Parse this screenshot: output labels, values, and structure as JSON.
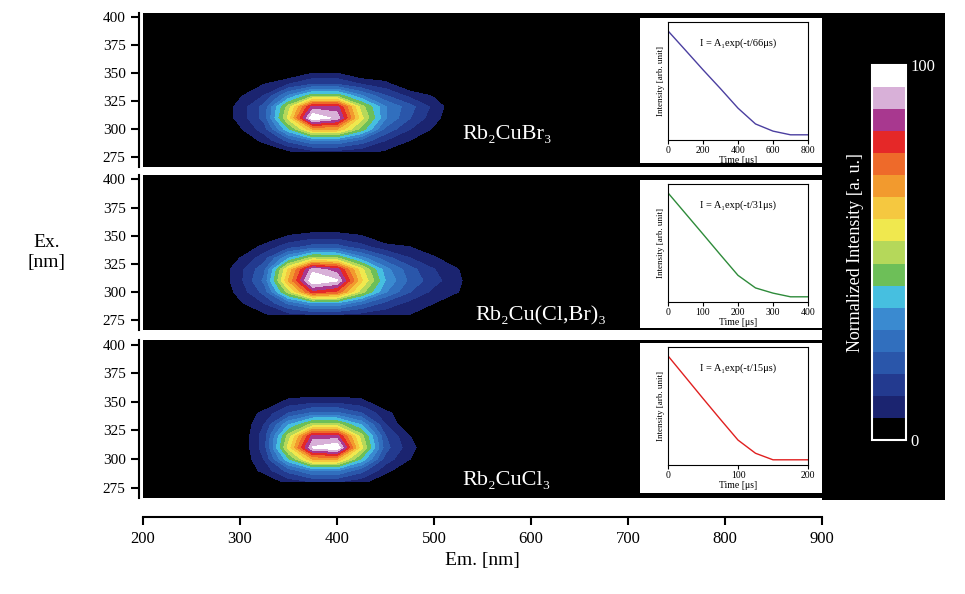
{
  "chart_data": {
    "type": "heatmap",
    "xlabel": "Em. [nm]",
    "ylabel": "Ex.\n[nm]",
    "xlim": [
      200,
      900
    ],
    "xticks": [
      200,
      300,
      400,
      500,
      600,
      700,
      800,
      900
    ],
    "ylim": [
      266,
      404
    ],
    "yticks": [
      275,
      300,
      325,
      350,
      375,
      400
    ],
    "colorbar": {
      "label": "Normalized Intensity [a. u.]",
      "range": [
        0,
        100
      ],
      "ticks": [
        0,
        100
      ]
    },
    "x": [
      275,
      300,
      325,
      350,
      375,
      400,
      425,
      450,
      475,
      500,
      525,
      550
    ],
    "y": [
      280,
      290,
      300,
      310,
      320,
      330,
      340,
      350,
      360
    ],
    "panels": [
      {
        "name": "Rb₂CuBr₃",
        "tick_labels": "y",
        "cells": [
          [
            0,
            0,
            0,
            5,
            10,
            10,
            8,
            5,
            0,
            0,
            0,
            0
          ],
          [
            0,
            0,
            8,
            20,
            30,
            30,
            22,
            12,
            6,
            0,
            0,
            0
          ],
          [
            0,
            5,
            15,
            40,
            65,
            65,
            45,
            22,
            12,
            5,
            0,
            0
          ],
          [
            0,
            8,
            20,
            55,
            100,
            92,
            55,
            30,
            18,
            8,
            0,
            0
          ],
          [
            0,
            8,
            20,
            50,
            85,
            85,
            50,
            30,
            20,
            10,
            0,
            0
          ],
          [
            0,
            5,
            12,
            30,
            45,
            45,
            30,
            18,
            10,
            5,
            0,
            0
          ],
          [
            0,
            0,
            6,
            12,
            18,
            18,
            12,
            8,
            0,
            0,
            0,
            0
          ],
          [
            0,
            0,
            0,
            0,
            6,
            6,
            0,
            0,
            0,
            0,
            0,
            0
          ],
          [
            0,
            0,
            0,
            0,
            0,
            0,
            0,
            0,
            0,
            0,
            0,
            0
          ]
        ],
        "inset": {
          "type": "line",
          "text": "I = A₁exp(-t/66μs)",
          "xlabel": "Time [μs]",
          "ylabel": "Intensity [arb. unit]",
          "log": "y",
          "tick_labels": "x",
          "color": "#4b3fa0",
          "xlim": [
            0,
            800
          ],
          "xticks": [
            0,
            200,
            400,
            600,
            800
          ],
          "ylim": [
            0.0002,
            2
          ],
          "x": [
            0,
            100,
            200,
            300,
            400,
            500,
            600,
            700,
            800
          ],
          "values": [
            1,
            0.22,
            0.048,
            0.011,
            0.0024,
            0.0007,
            0.0004,
            0.0003,
            0.0003
          ]
        }
      },
      {
        "name": "Rb₂Cu(Cl,Br)₃",
        "tick_labels": "y",
        "cells": [
          [
            0,
            0,
            5,
            10,
            12,
            12,
            10,
            8,
            6,
            0,
            0,
            0
          ],
          [
            0,
            5,
            12,
            25,
            35,
            35,
            25,
            16,
            10,
            6,
            0,
            0
          ],
          [
            0,
            8,
            20,
            50,
            80,
            75,
            50,
            30,
            18,
            10,
            6,
            0
          ],
          [
            0,
            10,
            25,
            65,
            100,
            95,
            60,
            35,
            22,
            14,
            7,
            0
          ],
          [
            0,
            10,
            22,
            60,
            92,
            85,
            55,
            32,
            20,
            12,
            6,
            0
          ],
          [
            0,
            6,
            15,
            35,
            50,
            48,
            32,
            20,
            12,
            7,
            0,
            0
          ],
          [
            0,
            0,
            8,
            15,
            20,
            20,
            14,
            8,
            6,
            0,
            0,
            0
          ],
          [
            0,
            0,
            0,
            6,
            8,
            8,
            6,
            0,
            0,
            0,
            0,
            0
          ],
          [
            0,
            0,
            0,
            0,
            0,
            0,
            0,
            0,
            0,
            0,
            0,
            0
          ]
        ],
        "inset": {
          "type": "line",
          "text": "I = A₁exp(-t/31μs)",
          "xlabel": "Time [μs]",
          "ylabel": "Intensity [arb. unit]",
          "log": "y",
          "tick_labels": "x",
          "color": "#2e8b3a",
          "xlim": [
            0,
            400
          ],
          "xticks": [
            0,
            100,
            200,
            300,
            400
          ],
          "ylim": [
            0.0002,
            2
          ],
          "x": [
            0,
            50,
            100,
            150,
            200,
            250,
            300,
            350,
            400
          ],
          "values": [
            1,
            0.2,
            0.04,
            0.0079,
            0.0016,
            0.0006,
            0.0004,
            0.0003,
            0.0003
          ]
        }
      },
      {
        "name": "Rb₂CuCl₃",
        "tick_labels": true,
        "cells": [
          [
            0,
            0,
            0,
            8,
            12,
            12,
            8,
            0,
            0,
            0,
            0,
            0
          ],
          [
            0,
            0,
            8,
            20,
            30,
            30,
            20,
            8,
            0,
            0,
            0,
            0
          ],
          [
            0,
            0,
            12,
            40,
            65,
            65,
            40,
            15,
            6,
            0,
            0,
            0
          ],
          [
            0,
            0,
            15,
            55,
            95,
            100,
            55,
            20,
            8,
            0,
            0,
            0
          ],
          [
            0,
            0,
            15,
            50,
            85,
            85,
            50,
            18,
            6,
            0,
            0,
            0
          ],
          [
            0,
            0,
            12,
            35,
            50,
            50,
            35,
            12,
            0,
            0,
            0,
            0
          ],
          [
            0,
            0,
            8,
            18,
            25,
            25,
            18,
            8,
            0,
            0,
            0,
            0
          ],
          [
            0,
            0,
            0,
            8,
            10,
            10,
            8,
            0,
            0,
            0,
            0,
            0
          ],
          [
            0,
            0,
            0,
            0,
            0,
            0,
            0,
            0,
            0,
            0,
            0,
            0
          ]
        ],
        "inset": {
          "type": "line",
          "text": "I = A₁exp(-t/15μs)",
          "xlabel": "Time [μs]",
          "ylabel": "Intensity [arb. unit]",
          "log": "y",
          "tick_labels": "x",
          "color": "#e02020",
          "xlim": [
            0,
            200
          ],
          "xticks": [
            0,
            100,
            200
          ],
          "ylim": [
            0.0002,
            2
          ],
          "x": [
            0,
            25,
            50,
            75,
            100,
            125,
            150,
            175,
            200
          ],
          "values": [
            1,
            0.19,
            0.036,
            0.007,
            0.0014,
            0.0005,
            0.0003,
            0.0003,
            0.0003
          ]
        }
      }
    ]
  }
}
